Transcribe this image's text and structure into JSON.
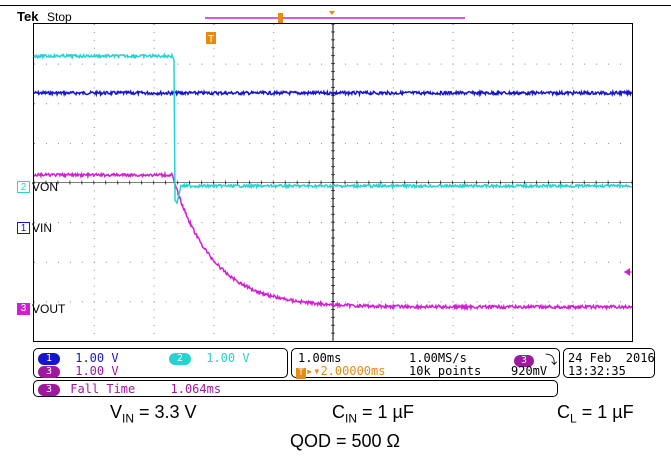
{
  "header": {
    "brand_prefix": "T",
    "brand_suffix": "ek",
    "status": "Stop"
  },
  "colors": {
    "ch1": "#1616c8",
    "ch2": "#28d2d2",
    "ch3": "#d21ed2",
    "trigger": "#e88a14"
  },
  "markers": {
    "trigger_marker": "T"
  },
  "channels": [
    {
      "number": "2",
      "label": "VON"
    },
    {
      "number": "1",
      "label": "VIN"
    },
    {
      "number": "3",
      "label": "VOUT"
    }
  ],
  "readout": {
    "ch1_badge": "1",
    "ch1_scale": "1.00 V",
    "ch2_badge": "2",
    "ch2_scale": "1.00 V",
    "ch3_badge": "3",
    "ch3_scale": "1.00 V",
    "math_badge": "3",
    "math_label": "Fall Time",
    "math_value": "1.064ms",
    "timebase": "1.00ms",
    "sample_rate": "1.00MS/s",
    "trigger_badge": "T",
    "trigger_delay": "▸▾2.00000ms",
    "record_length": "10k points",
    "trig_source_badge": "3",
    "trig_slope": "⤵",
    "trig_level": "920mV",
    "date": "24 Feb  2016",
    "time": "13:32:35"
  },
  "caption": {
    "vin_prefix": "V",
    "vin_sub": "IN",
    "vin_value": " = 3.3 V",
    "cin_prefix": "C",
    "cin_sub": "IN",
    "cin_value": " = 1 µF",
    "cl_prefix": "C",
    "cl_sub": "L",
    "cl_value": " = 1 µF",
    "qod": "QOD = 500 Ω"
  }
}
